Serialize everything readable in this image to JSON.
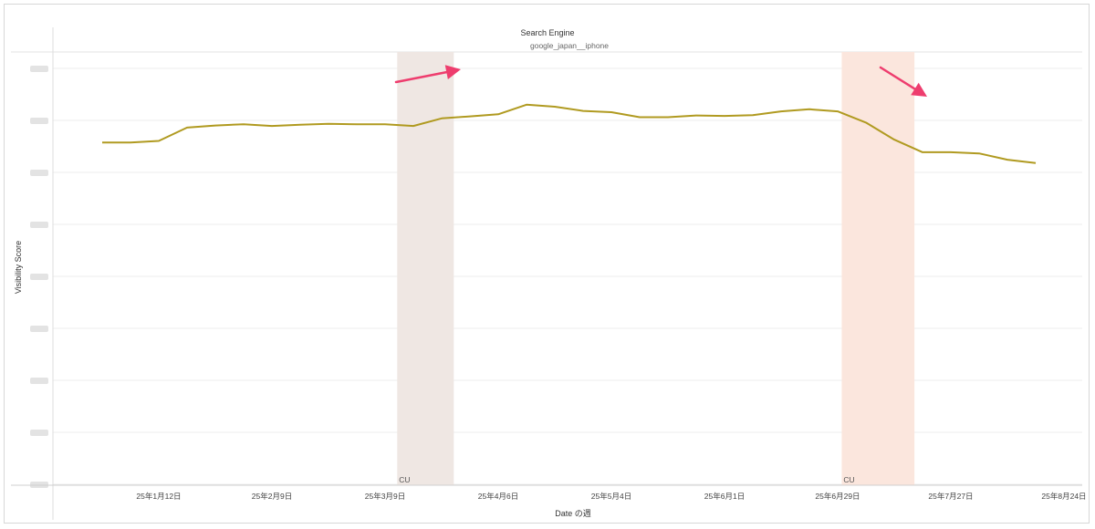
{
  "chart_data": {
    "type": "line",
    "title": "Search Engine",
    "subtitle": "google_japan__iphone",
    "xlabel": "Date の週",
    "ylabel": "Visibility Score",
    "x_tick_labels": [
      "25年1月12日",
      "25年2月9日",
      "25年3月9日",
      "25年4月6日",
      "25年5月4日",
      "25年6月1日",
      "25年6月29日",
      "25年7月27日",
      "25年8月24日"
    ],
    "y_ticks_blurred": true,
    "grid": true,
    "legend": "none",
    "line_color": "#b09a20",
    "x": [
      "2024-12-29",
      "2025-01-05",
      "2025-01-12",
      "2025-01-19",
      "2025-01-26",
      "2025-02-02",
      "2025-02-09",
      "2025-02-16",
      "2025-02-23",
      "2025-03-02",
      "2025-03-09",
      "2025-03-16",
      "2025-03-23",
      "2025-03-30",
      "2025-04-06",
      "2025-04-13",
      "2025-04-20",
      "2025-04-27",
      "2025-05-04",
      "2025-05-11",
      "2025-05-18",
      "2025-05-25",
      "2025-06-01",
      "2025-06-08",
      "2025-06-15",
      "2025-06-22",
      "2025-06-29",
      "2025-07-06",
      "2025-07-13",
      "2025-07-20",
      "2025-07-27",
      "2025-08-03",
      "2025-08-10",
      "2025-08-17"
    ],
    "values": [
      82.2,
      82.2,
      82.6,
      85.8,
      86.3,
      86.6,
      86.2,
      86.5,
      86.7,
      86.6,
      86.6,
      86.2,
      88.0,
      88.5,
      89.0,
      91.3,
      90.8,
      89.8,
      89.5,
      88.3,
      88.3,
      88.7,
      88.6,
      88.8,
      89.7,
      90.2,
      89.7,
      87.0,
      82.9,
      79.9,
      79.9,
      79.6,
      78.1,
      77.3
    ],
    "ylim": [
      0,
      100
    ],
    "highlights": [
      {
        "start": "2025-03-12",
        "end": "2025-03-26",
        "label": "CU",
        "color": "#efe7e3"
      },
      {
        "start": "2025-06-30",
        "end": "2025-07-18",
        "label": "CU",
        "color": "#fbe6dd"
      }
    ],
    "annotation_color": "#ee3d6e"
  }
}
